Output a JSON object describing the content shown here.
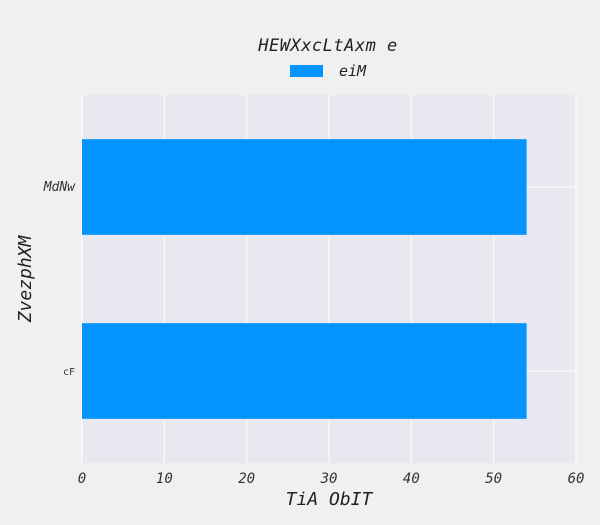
{
  "chart_data": {
    "type": "bar",
    "orientation": "horizontal",
    "title": "",
    "legend_title": "HEWXxcLtAxm e",
    "legend_position": "top-center",
    "categories": [
      "MdNw",
      "cF"
    ],
    "series": [
      {
        "name": "eiM",
        "values": [
          54,
          54
        ]
      }
    ],
    "xlabel": "TiA ObIT",
    "ylabel": "ZvezphXM",
    "xlim": [
      0,
      60
    ],
    "xticks": [
      "0",
      "10",
      "20",
      "30",
      "40",
      "50",
      "60"
    ],
    "grid": true,
    "bar_color": "#0394ff",
    "plot_background": "#e8e8f1",
    "figure_background": "#f0f0f0"
  }
}
